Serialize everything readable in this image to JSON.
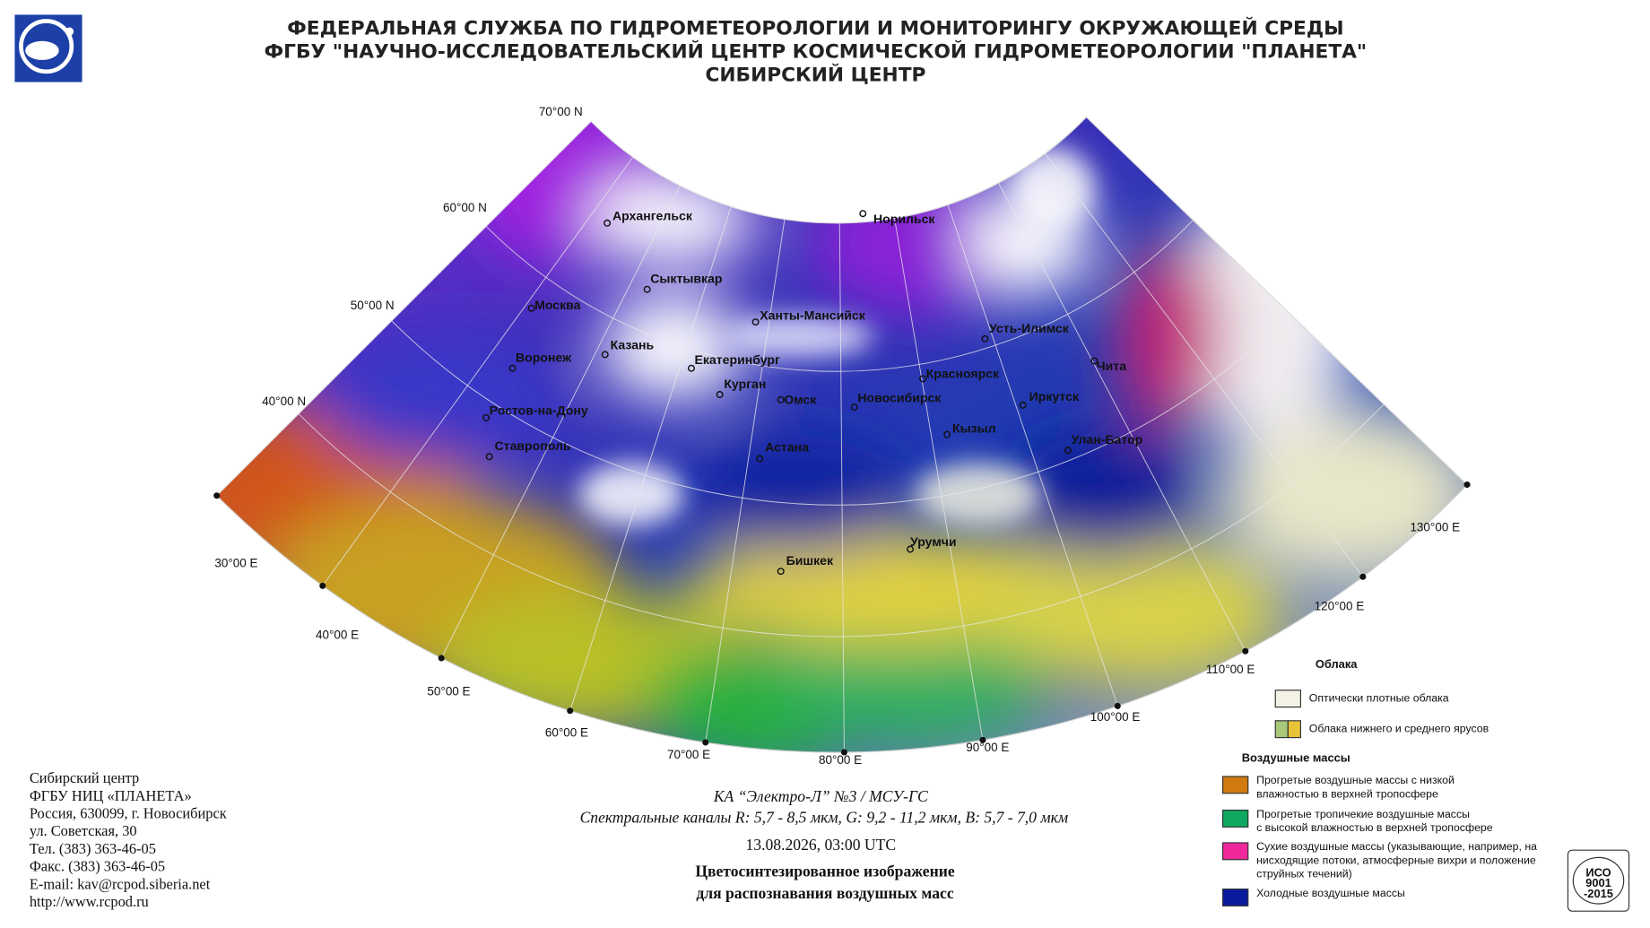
{
  "header": {
    "lines": [
      "ФЕДЕРАЛЬНАЯ СЛУЖБА ПО ГИДРОМЕТЕОРОЛОГИИ И МОНИТОРИНГУ ОКРУЖАЮЩЕЙ СРЕДЫ",
      "ФГБУ \"НАУЧНО-ИССЛЕДОВАТЕЛЬСКИЙ ЦЕНТР КОСМИЧЕСКОЙ ГИДРОМЕТЕОРОЛОГИИ \"ПЛАНЕТА\"",
      "СИБИРСКИЙ ЦЕНТР"
    ]
  },
  "map": {
    "latitude_labels": [
      "70°00 N",
      "60°00 N",
      "50°00 N",
      "40°00 N"
    ],
    "longitude_labels": [
      "30°00 E",
      "40°00 E",
      "50°00 E",
      "60°00 E",
      "70°00 E",
      "80°00 E",
      "90°00 E",
      "100°00 E",
      "110°00 E",
      "120°00 E",
      "130°00 E"
    ],
    "cities": [
      "Архангельск",
      "Норильск",
      "Сыктывкар",
      "Москва",
      "Ханты-Мансийск",
      "Усть-Илимск",
      "Казань",
      "Воронеж",
      "Екатеринбург",
      "Чита",
      "Красноярск",
      "Курган",
      "Омск",
      "Новосибирск",
      "Иркутск",
      "Ростов-на-Дону",
      "Кызыл",
      "Улан-Батор",
      "Ставрополь",
      "Астана",
      "Урумчи",
      "Бишкек"
    ]
  },
  "caption": {
    "satellite": "КА “Электро-Л” №3 / МСУ-ГС",
    "channels": "Спектральные каналы R: 5,7 - 8,5 мкм, G: 9,2 - 11,2 мкм, B: 5,7 - 7,0 мкм",
    "datetime": "13.08.2026, 03:00 UTC",
    "title": [
      "Цветосинтезированное изображение",
      "для распознавания воздушных масс"
    ]
  },
  "contacts": {
    "lines": [
      "Сибирский центр",
      "ФГБУ НИЦ «ПЛАНЕТА»",
      "Россия, 630099, г. Новосибирск",
      "ул. Советская, 30",
      "Тел. (383) 363-46-05",
      "Факс. (383) 363-46-05",
      "E-mail: kav@rcpod.siberia.net",
      "http://www.rcpod.ru"
    ]
  },
  "legend": {
    "clouds_title": "Облака",
    "clouds": [
      "Оптически плотные облака",
      "Облака нижнего и среднего ярусов"
    ],
    "air_title": "Воздушные массы",
    "air": [
      [
        "Прогретые воздушные массы с низкой",
        "влажностью в верхней тропосфере"
      ],
      [
        "Прогретые тропичекие воздушные массы",
        "с высокой влажностью в верхней тропосфере"
      ],
      [
        "Сухие воздушные массы (указывающие, например, на",
        "нисходящие потоки, атмосферные вихри и положение",
        "струйных течений)"
      ],
      [
        "Холодные воздушные массы"
      ]
    ]
  },
  "certificate": {
    "lines": [
      "ИСО",
      "9001",
      "-2015"
    ]
  }
}
